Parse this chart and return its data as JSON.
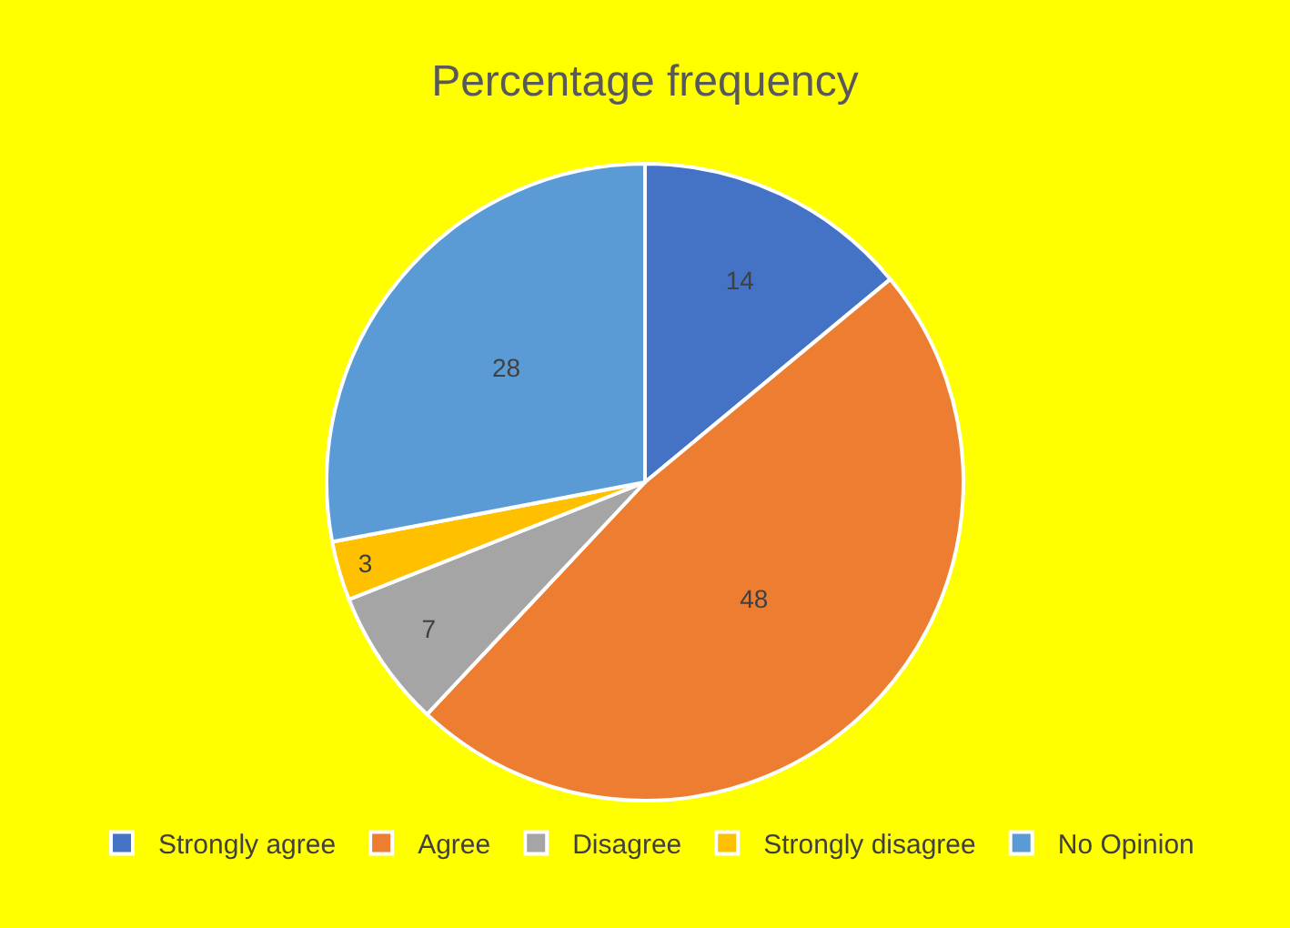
{
  "chart_data": {
    "type": "pie",
    "title": "Percentage frequency",
    "categories": [
      "Strongly agree",
      "Agree",
      "Disagree",
      "Strongly disagree",
      "No Opinion"
    ],
    "values": [
      14,
      48,
      7,
      3,
      28
    ],
    "colors": [
      "#4472c4",
      "#ed7d31",
      "#a5a5a5",
      "#ffc000",
      "#5b9bd5"
    ],
    "data_labels": true,
    "legend": "bottom"
  }
}
